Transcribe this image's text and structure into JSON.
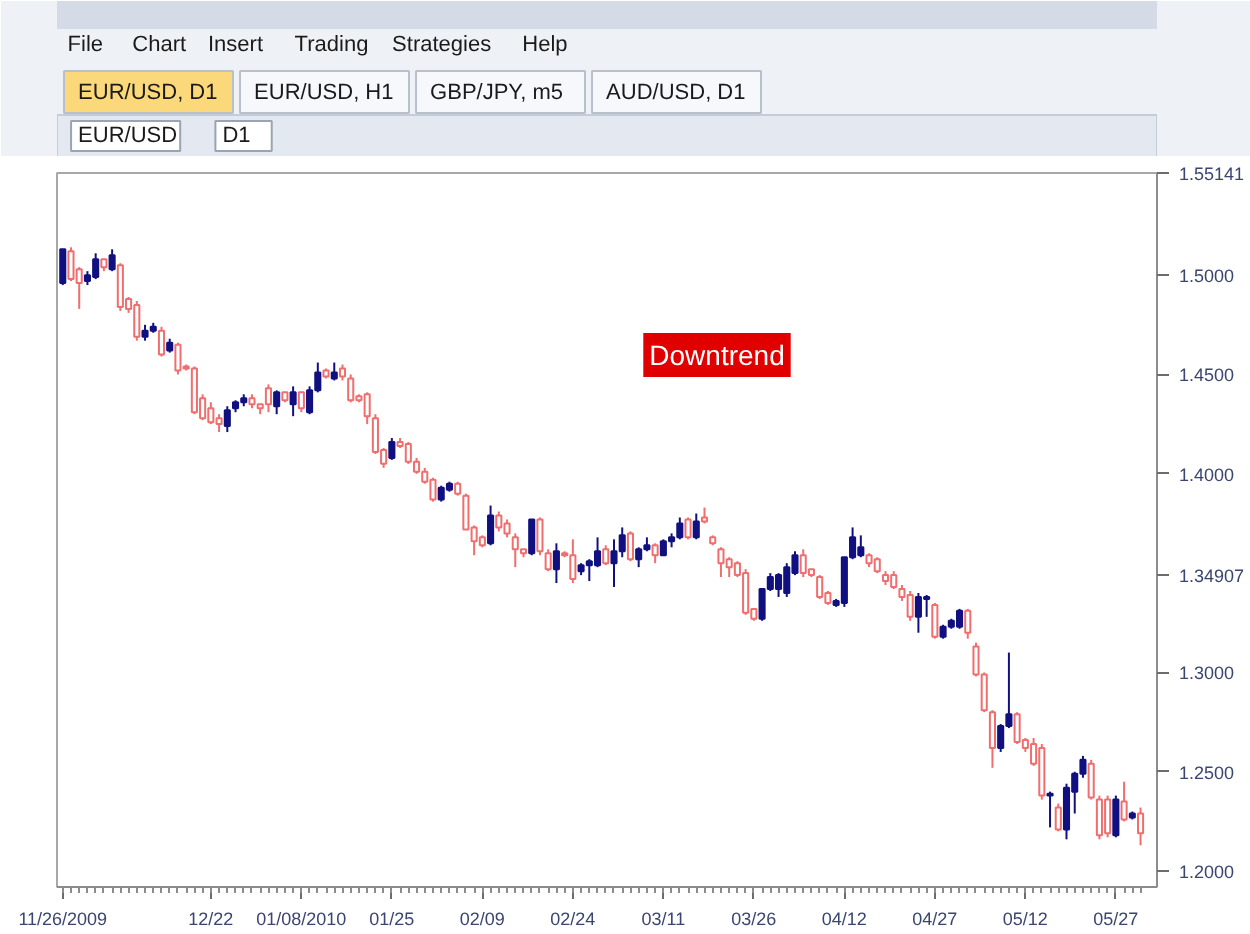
{
  "chart_data": {
    "type": "candlestick",
    "title": "EUR/USD, D1",
    "annotations": [
      "Downtrend",
      "File",
      "Chart",
      "Insert",
      "Trading",
      "Strategies",
      "Help",
      "EUR/USD, H1",
      "GBP/JPY, m5",
      "AUD/USD, D1",
      "EUR/USD",
      "D1"
    ],
    "categories": [
      "11/26/2009",
      null,
      null,
      null,
      null,
      null,
      null,
      null,
      null,
      null,
      null,
      null,
      null,
      null,
      null,
      null,
      null,
      null,
      "12/22",
      null,
      null,
      null,
      null,
      null,
      null,
      null,
      null,
      null,
      null,
      "01/08/2010",
      null,
      null,
      null,
      null,
      null,
      null,
      null,
      null,
      null,
      null,
      "01/25",
      null,
      null,
      null,
      null,
      null,
      null,
      null,
      null,
      null,
      null,
      "02/09",
      null,
      null,
      null,
      null,
      null,
      null,
      null,
      null,
      null,
      null,
      "02/24",
      null,
      null,
      null,
      null,
      null,
      null,
      null,
      null,
      null,
      null,
      "03/11",
      null,
      null,
      null,
      null,
      null,
      null,
      null,
      null,
      null,
      null,
      "03/26",
      null,
      null,
      null,
      null,
      null,
      null,
      null,
      null,
      null,
      null,
      "04/12",
      null,
      null,
      null,
      null,
      null,
      null,
      null,
      null,
      null,
      null,
      "04/27",
      null,
      null,
      null,
      null,
      null,
      null,
      null,
      null,
      null,
      null,
      "05/12",
      null,
      null,
      null,
      null,
      null,
      null,
      null,
      null,
      null,
      null,
      "05/27",
      null,
      null,
      null
    ],
    "ohlc": [
      [
        1.496,
        1.513,
        1.495,
        1.513
      ],
      [
        1.512,
        1.514,
        1.497,
        1.498
      ],
      [
        1.503,
        1.504,
        1.483,
        1.496
      ],
      [
        1.497,
        1.502,
        1.495,
        1.5
      ],
      [
        1.499,
        1.511,
        1.498,
        1.508
      ],
      [
        1.508,
        1.508,
        1.502,
        1.504
      ],
      [
        1.503,
        1.513,
        1.502,
        1.51
      ],
      [
        1.505,
        1.506,
        1.482,
        1.484
      ],
      [
        1.488,
        1.489,
        1.481,
        1.483
      ],
      [
        1.485,
        1.487,
        1.467,
        1.469
      ],
      [
        1.469,
        1.475,
        1.467,
        1.472
      ],
      [
        1.472,
        1.476,
        1.471,
        1.474
      ],
      [
        1.472,
        1.474,
        1.459,
        1.46
      ],
      [
        1.462,
        1.468,
        1.461,
        1.466
      ],
      [
        1.465,
        1.466,
        1.45,
        1.452
      ],
      [
        1.454,
        1.455,
        1.452,
        1.453
      ],
      [
        1.453,
        1.454,
        1.43,
        1.431
      ],
      [
        1.438,
        1.44,
        1.427,
        1.428
      ],
      [
        1.433,
        1.436,
        1.425,
        1.426
      ],
      [
        1.428,
        1.43,
        1.421,
        1.425
      ],
      [
        1.424,
        1.434,
        1.421,
        1.432
      ],
      [
        1.433,
        1.437,
        1.431,
        1.436
      ],
      [
        1.436,
        1.44,
        1.434,
        1.438
      ],
      [
        1.438,
        1.44,
        1.433,
        1.435
      ],
      [
        1.435,
        1.435,
        1.43,
        1.433
      ],
      [
        1.443,
        1.445,
        1.431,
        1.435
      ],
      [
        1.434,
        1.442,
        1.43,
        1.441
      ],
      [
        1.441,
        1.441,
        1.436,
        1.437
      ],
      [
        1.435,
        1.444,
        1.429,
        1.441
      ],
      [
        1.441,
        1.441,
        1.431,
        1.433
      ],
      [
        1.431,
        1.444,
        1.43,
        1.442
      ],
      [
        1.442,
        1.456,
        1.441,
        1.451
      ],
      [
        1.452,
        1.453,
        1.448,
        1.449
      ],
      [
        1.448,
        1.456,
        1.447,
        1.451
      ],
      [
        1.453,
        1.455,
        1.447,
        1.449
      ],
      [
        1.448,
        1.45,
        1.436,
        1.437
      ],
      [
        1.439,
        1.44,
        1.436,
        1.437
      ],
      [
        1.44,
        1.441,
        1.425,
        1.429
      ],
      [
        1.428,
        1.43,
        1.41,
        1.411
      ],
      [
        1.412,
        1.413,
        1.403,
        1.405
      ],
      [
        1.408,
        1.418,
        1.407,
        1.416
      ],
      [
        1.416,
        1.418,
        1.413,
        1.414
      ],
      [
        1.415,
        1.416,
        1.405,
        1.406
      ],
      [
        1.406,
        1.408,
        1.4,
        1.401
      ],
      [
        1.401,
        1.403,
        1.395,
        1.396
      ],
      [
        1.397,
        1.398,
        1.386,
        1.387
      ],
      [
        1.387,
        1.394,
        1.386,
        1.393
      ],
      [
        1.392,
        1.396,
        1.391,
        1.395
      ],
      [
        1.395,
        1.396,
        1.389,
        1.39
      ],
      [
        1.389,
        1.39,
        1.372,
        1.372
      ],
      [
        1.373,
        1.374,
        1.359,
        1.366
      ],
      [
        1.368,
        1.369,
        1.363,
        1.364
      ],
      [
        1.365,
        1.384,
        1.364,
        1.379
      ],
      [
        1.379,
        1.381,
        1.371,
        1.373
      ],
      [
        1.375,
        1.377,
        1.368,
        1.37
      ],
      [
        1.368,
        1.37,
        1.353,
        1.362
      ],
      [
        1.362,
        1.362,
        1.358,
        1.36
      ],
      [
        1.36,
        1.377,
        1.359,
        1.377
      ],
      [
        1.377,
        1.378,
        1.359,
        1.361
      ],
      [
        1.36,
        1.362,
        1.351,
        1.352
      ],
      [
        1.352,
        1.365,
        1.345,
        1.361
      ],
      [
        1.36,
        1.361,
        1.358,
        1.359
      ],
      [
        1.359,
        1.367,
        1.345,
        1.347
      ],
      [
        1.351,
        1.355,
        1.349,
        1.354
      ],
      [
        1.354,
        1.357,
        1.346,
        1.356
      ],
      [
        1.354,
        1.368,
        1.353,
        1.361
      ],
      [
        1.362,
        1.364,
        1.354,
        1.355
      ],
      [
        1.355,
        1.367,
        1.343,
        1.361
      ],
      [
        1.361,
        1.373,
        1.358,
        1.369
      ],
      [
        1.37,
        1.371,
        1.356,
        1.357
      ],
      [
        1.357,
        1.363,
        1.353,
        1.362
      ],
      [
        1.362,
        1.368,
        1.361,
        1.364
      ],
      [
        1.364,
        1.365,
        1.355,
        1.359
      ],
      [
        1.359,
        1.367,
        1.359,
        1.366
      ],
      [
        1.366,
        1.37,
        1.363,
        1.368
      ],
      [
        1.368,
        1.378,
        1.367,
        1.375
      ],
      [
        1.377,
        1.378,
        1.367,
        1.368
      ],
      [
        1.368,
        1.38,
        1.367,
        1.376
      ],
      [
        1.378,
        1.383,
        1.375,
        1.376
      ],
      [
        1.368,
        1.369,
        1.364,
        1.365
      ],
      [
        1.362,
        1.363,
        1.348,
        1.355
      ],
      [
        1.357,
        1.358,
        1.348,
        1.353
      ],
      [
        1.355,
        1.356,
        1.348,
        1.349
      ],
      [
        1.35,
        1.352,
        1.329,
        1.33
      ],
      [
        1.332,
        1.332,
        1.326,
        1.327
      ],
      [
        1.327,
        1.342,
        1.326,
        1.342
      ],
      [
        1.342,
        1.35,
        1.341,
        1.348
      ],
      [
        1.342,
        1.35,
        1.338,
        1.349
      ],
      [
        1.34,
        1.355,
        1.338,
        1.353
      ],
      [
        1.35,
        1.361,
        1.349,
        1.359
      ],
      [
        1.359,
        1.362,
        1.348,
        1.35
      ],
      [
        1.352,
        1.352,
        1.348,
        1.349
      ],
      [
        1.348,
        1.349,
        1.337,
        1.338
      ],
      [
        1.34,
        1.341,
        1.334,
        1.335
      ],
      [
        1.334,
        1.337,
        1.333,
        1.336
      ],
      [
        1.335,
        1.358,
        1.333,
        1.358
      ],
      [
        1.358,
        1.373,
        1.357,
        1.368
      ],
      [
        1.359,
        1.369,
        1.358,
        1.363
      ],
      [
        1.359,
        1.36,
        1.353,
        1.355
      ],
      [
        1.357,
        1.358,
        1.35,
        1.351
      ],
      [
        1.349,
        1.351,
        1.344,
        1.346
      ],
      [
        1.349,
        1.351,
        1.342,
        1.343
      ],
      [
        1.342,
        1.344,
        1.336,
        1.338
      ],
      [
        1.339,
        1.341,
        1.326,
        1.328
      ],
      [
        1.328,
        1.34,
        1.32,
        1.338
      ],
      [
        1.337,
        1.339,
        1.328,
        1.338
      ],
      [
        1.334,
        1.335,
        1.317,
        1.318
      ],
      [
        1.318,
        1.324,
        1.317,
        1.323
      ],
      [
        1.323,
        1.327,
        1.322,
        1.326
      ],
      [
        1.323,
        1.332,
        1.322,
        1.331
      ],
      [
        1.331,
        1.332,
        1.317,
        1.32
      ],
      [
        1.313,
        1.315,
        1.298,
        1.299
      ],
      [
        1.299,
        1.3,
        1.28,
        1.281
      ],
      [
        1.28,
        1.281,
        1.252,
        1.262
      ],
      [
        1.262,
        1.274,
        1.26,
        1.273
      ],
      [
        1.273,
        1.31,
        1.272,
        1.279
      ],
      [
        1.279,
        1.28,
        1.264,
        1.265
      ],
      [
        1.266,
        1.267,
        1.26,
        1.262
      ],
      [
        1.264,
        1.267,
        1.253,
        1.254
      ],
      [
        1.262,
        1.264,
        1.236,
        1.238
      ],
      [
        1.238,
        1.24,
        1.222,
        1.239
      ],
      [
        1.232,
        1.234,
        1.22,
        1.221
      ],
      [
        1.221,
        1.244,
        1.216,
        1.242
      ],
      [
        1.24,
        1.25,
        1.229,
        1.249
      ],
      [
        1.249,
        1.258,
        1.247,
        1.256
      ],
      [
        1.254,
        1.256,
        1.236,
        1.237
      ],
      [
        1.236,
        1.238,
        1.216,
        1.218
      ],
      [
        1.236,
        1.238,
        1.217,
        1.219
      ],
      [
        1.218,
        1.238,
        1.217,
        1.236
      ],
      [
        1.235,
        1.245,
        1.225,
        1.226
      ],
      [
        1.227,
        1.23,
        1.226,
        1.229
      ],
      [
        1.229,
        1.232,
        1.213,
        1.219
      ]
    ],
    "colors": [
      "#101080",
      "#f06e6e",
      "#f06e6e",
      "#101080",
      "#101080",
      "#f06e6e",
      "#101080",
      "#f06e6e",
      "#f06e6e",
      "#f06e6e",
      "#101080",
      "#101080",
      "#f06e6e",
      "#101080",
      "#f06e6e",
      "#f06e6e",
      "#f06e6e",
      "#f06e6e",
      "#f06e6e",
      "#f06e6e",
      "#101080",
      "#101080",
      "#101080",
      "#f06e6e",
      "#f06e6e",
      "#f06e6e",
      "#101080",
      "#f06e6e",
      "#101080",
      "#f06e6e",
      "#101080",
      "#101080",
      "#f06e6e",
      "#101080",
      "#f06e6e",
      "#f06e6e",
      "#f06e6e",
      "#f06e6e",
      "#f06e6e",
      "#f06e6e",
      "#101080",
      "#f06e6e",
      "#f06e6e",
      "#f06e6e",
      "#f06e6e",
      "#f06e6e",
      "#101080",
      "#101080",
      "#f06e6e",
      "#f06e6e",
      "#f06e6e",
      "#f06e6e",
      "#101080",
      "#f06e6e",
      "#f06e6e",
      "#f06e6e",
      "#f06e6e",
      "#101080",
      "#f06e6e",
      "#f06e6e",
      "#101080",
      "#f06e6e",
      "#f06e6e",
      "#101080",
      "#101080",
      "#101080",
      "#f06e6e",
      "#101080",
      "#101080",
      "#f06e6e",
      "#101080",
      "#101080",
      "#f06e6e",
      "#101080",
      "#101080",
      "#101080",
      "#f06e6e",
      "#101080",
      "#f06e6e",
      "#f06e6e",
      "#f06e6e",
      "#f06e6e",
      "#f06e6e",
      "#f06e6e",
      "#f06e6e",
      "#101080",
      "#101080",
      "#101080",
      "#101080",
      "#101080",
      "#f06e6e",
      "#f06e6e",
      "#f06e6e",
      "#f06e6e",
      "#101080",
      "#101080",
      "#101080",
      "#101080",
      "#f06e6e",
      "#f06e6e",
      "#f06e6e",
      "#f06e6e",
      "#f06e6e",
      "#f06e6e",
      "#101080",
      "#101080",
      "#f06e6e",
      "#101080",
      "#101080",
      "#101080",
      "#f06e6e",
      "#f06e6e",
      "#f06e6e",
      "#f06e6e",
      "#101080",
      "#101080",
      "#f06e6e",
      "#f06e6e",
      "#f06e6e",
      "#f06e6e",
      "#101080",
      "#f06e6e",
      "#101080",
      "#101080",
      "#101080",
      "#f06e6e",
      "#f06e6e",
      "#f06e6e",
      "#101080",
      "#f06e6e",
      "#101080",
      "#f06e6e"
    ],
    "ylim": [
      1.192,
      1.55141
    ],
    "yticks": [
      {
        "value": 1.2,
        "label": "1.2000"
      },
      {
        "value": 1.25,
        "label": "1.2500"
      },
      {
        "value": 1.3,
        "label": "1.3000"
      },
      {
        "value": 1.34907,
        "label": "1.34907"
      },
      {
        "value": 1.4,
        "label": "1.4000"
      },
      {
        "value": 1.45,
        "label": "1.4500"
      },
      {
        "value": 1.5,
        "label": "1.5000"
      },
      {
        "value": 1.55141,
        "label": "1.55141"
      }
    ]
  }
}
